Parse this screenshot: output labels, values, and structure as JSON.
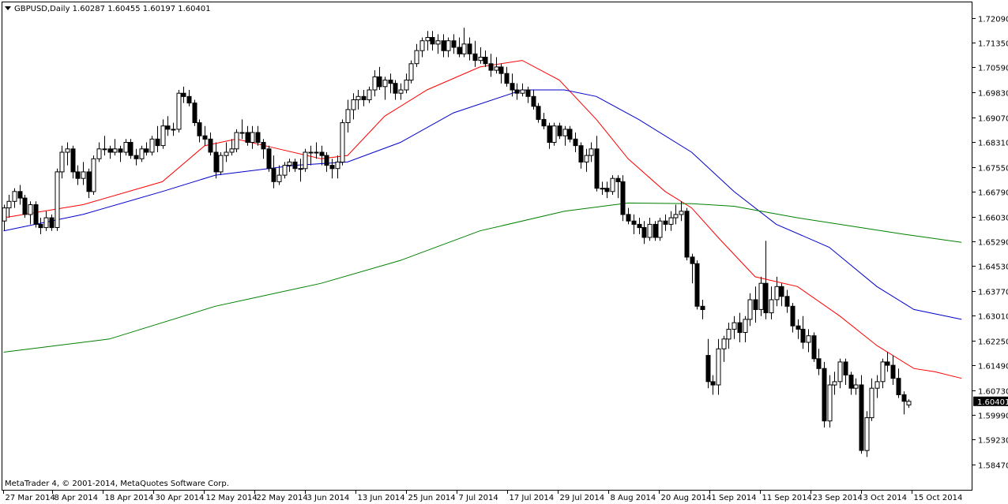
{
  "window": {
    "symbol_line": "GBPUSD,Daily  1.60287 1.60455 1.60197 1.60401",
    "copyright": "MetaTrader 4, © 2001-2014, MetaQuotes Software Corp.",
    "price_tag": "1.60401"
  },
  "colors": {
    "background": "#ffffff",
    "candle": "#000000",
    "ma_fast": "#ff0000",
    "ma_mid": "#0000cc",
    "ma_slow": "#008000"
  },
  "chart_data": {
    "type": "candlestick",
    "symbol": "GBPUSD",
    "timeframe": "Daily",
    "ylim": [
      1.5847,
      1.7209
    ],
    "y_ticks": [
      "1.72090",
      "1.71350",
      "1.70590",
      "1.69830",
      "1.69070",
      "1.68310",
      "1.67550",
      "1.66790",
      "1.66030",
      "1.65290",
      "1.64530",
      "1.63770",
      "1.63010",
      "1.62250",
      "1.61490",
      "1.60730",
      "1.59990",
      "1.59230",
      "1.58470"
    ],
    "x_labels": [
      "27 Mar 2014",
      "8 Apr 2014",
      "18 Apr 2014",
      "30 Apr 2014",
      "12 May 2014",
      "22 May 2014",
      "3 Jun 2014",
      "13 Jun 2014",
      "25 Jun 2014",
      "7 Jul 2014",
      "17 Jul 2014",
      "29 Jul 2014",
      "8 Aug 2014",
      "20 Aug 2014",
      "1 Sep 2014",
      "11 Sep 2014",
      "23 Sep 2014",
      "3 Oct 2014",
      "15 Oct 2014"
    ],
    "last_price": 1.60401,
    "ohlc": [
      [
        1.659,
        1.664,
        1.656,
        1.663
      ],
      [
        1.663,
        1.667,
        1.66,
        1.665
      ],
      [
        1.665,
        1.669,
        1.663,
        1.668
      ],
      [
        1.668,
        1.67,
        1.664,
        1.666
      ],
      [
        1.666,
        1.667,
        1.66,
        1.661
      ],
      [
        1.661,
        1.665,
        1.658,
        1.664
      ],
      [
        1.664,
        1.665,
        1.657,
        1.658
      ],
      [
        1.658,
        1.66,
        1.655,
        1.657
      ],
      [
        1.657,
        1.662,
        1.656,
        1.66
      ],
      [
        1.66,
        1.661,
        1.656,
        1.657
      ],
      [
        1.657,
        1.675,
        1.656,
        1.674
      ],
      [
        1.674,
        1.682,
        1.672,
        1.68
      ],
      [
        1.68,
        1.683,
        1.676,
        1.681
      ],
      [
        1.681,
        1.682,
        1.672,
        1.674
      ],
      [
        1.674,
        1.676,
        1.67,
        1.672
      ],
      [
        1.672,
        1.677,
        1.67,
        1.674
      ],
      [
        1.674,
        1.675,
        1.666,
        1.668
      ],
      [
        1.668,
        1.679,
        1.667,
        1.678
      ],
      [
        1.678,
        1.683,
        1.677,
        1.681
      ],
      [
        1.681,
        1.685,
        1.679,
        1.681
      ],
      [
        1.681,
        1.682,
        1.678,
        1.68
      ],
      [
        1.68,
        1.684,
        1.679,
        1.681
      ],
      [
        1.681,
        1.682,
        1.677,
        1.68
      ],
      [
        1.68,
        1.684,
        1.679,
        1.683
      ],
      [
        1.683,
        1.684,
        1.678,
        1.679
      ],
      [
        1.679,
        1.681,
        1.676,
        1.678
      ],
      [
        1.678,
        1.682,
        1.677,
        1.681
      ],
      [
        1.681,
        1.683,
        1.679,
        1.68
      ],
      [
        1.68,
        1.685,
        1.679,
        1.684
      ],
      [
        1.684,
        1.688,
        1.68,
        1.682
      ],
      [
        1.682,
        1.69,
        1.681,
        1.688
      ],
      [
        1.688,
        1.691,
        1.685,
        1.687
      ],
      [
        1.687,
        1.689,
        1.685,
        1.687
      ],
      [
        1.687,
        1.699,
        1.686,
        1.698
      ],
      [
        1.698,
        1.7,
        1.695,
        1.697
      ],
      [
        1.697,
        1.699,
        1.694,
        1.695
      ],
      [
        1.695,
        1.696,
        1.688,
        1.689
      ],
      [
        1.689,
        1.69,
        1.683,
        1.685
      ],
      [
        1.685,
        1.688,
        1.682,
        1.684
      ],
      [
        1.684,
        1.686,
        1.679,
        1.68
      ],
      [
        1.68,
        1.683,
        1.672,
        1.674
      ],
      [
        1.674,
        1.68,
        1.673,
        1.679
      ],
      [
        1.679,
        1.683,
        1.677,
        1.68
      ],
      [
        1.68,
        1.684,
        1.679,
        1.681
      ],
      [
        1.681,
        1.687,
        1.68,
        1.686
      ],
      [
        1.686,
        1.69,
        1.684,
        1.686
      ],
      [
        1.686,
        1.688,
        1.682,
        1.683
      ],
      [
        1.683,
        1.688,
        1.681,
        1.686
      ],
      [
        1.686,
        1.688,
        1.682,
        1.683
      ],
      [
        1.683,
        1.684,
        1.678,
        1.681
      ],
      [
        1.681,
        1.682,
        1.674,
        1.675
      ],
      [
        1.675,
        1.679,
        1.669,
        1.671
      ],
      [
        1.671,
        1.676,
        1.67,
        1.673
      ],
      [
        1.673,
        1.677,
        1.672,
        1.676
      ],
      [
        1.676,
        1.678,
        1.674,
        1.677
      ],
      [
        1.677,
        1.678,
        1.674,
        1.675
      ],
      [
        1.675,
        1.678,
        1.671,
        1.675
      ],
      [
        1.675,
        1.681,
        1.674,
        1.68
      ],
      [
        1.68,
        1.682,
        1.676,
        1.68
      ],
      [
        1.68,
        1.683,
        1.678,
        1.68
      ],
      [
        1.68,
        1.682,
        1.676,
        1.679
      ],
      [
        1.679,
        1.68,
        1.674,
        1.676
      ],
      [
        1.676,
        1.678,
        1.672,
        1.675
      ],
      [
        1.675,
        1.679,
        1.672,
        1.677
      ],
      [
        1.677,
        1.69,
        1.676,
        1.689
      ],
      [
        1.689,
        1.696,
        1.686,
        1.693
      ],
      [
        1.693,
        1.698,
        1.69,
        1.696
      ],
      [
        1.696,
        1.699,
        1.693,
        1.697
      ],
      [
        1.697,
        1.699,
        1.694,
        1.696
      ],
      [
        1.696,
        1.7,
        1.695,
        1.699
      ],
      [
        1.699,
        1.705,
        1.697,
        1.703
      ],
      [
        1.703,
        1.706,
        1.699,
        1.7
      ],
      [
        1.7,
        1.703,
        1.696,
        1.702
      ],
      [
        1.702,
        1.704,
        1.698,
        1.701
      ],
      [
        1.701,
        1.702,
        1.696,
        1.698
      ],
      [
        1.698,
        1.701,
        1.696,
        1.699
      ],
      [
        1.699,
        1.704,
        1.698,
        1.702
      ],
      [
        1.702,
        1.708,
        1.701,
        1.707
      ],
      [
        1.707,
        1.713,
        1.706,
        1.711
      ],
      [
        1.711,
        1.715,
        1.709,
        1.714
      ],
      [
        1.714,
        1.717,
        1.711,
        1.715
      ],
      [
        1.715,
        1.717,
        1.711,
        1.713
      ],
      [
        1.713,
        1.716,
        1.71,
        1.714
      ],
      [
        1.714,
        1.716,
        1.709,
        1.711
      ],
      [
        1.711,
        1.715,
        1.709,
        1.714
      ],
      [
        1.714,
        1.716,
        1.71,
        1.712
      ],
      [
        1.712,
        1.715,
        1.709,
        1.71
      ],
      [
        1.71,
        1.718,
        1.709,
        1.713
      ],
      [
        1.713,
        1.715,
        1.708,
        1.71
      ],
      [
        1.71,
        1.714,
        1.706,
        1.708
      ],
      [
        1.708,
        1.712,
        1.707,
        1.709
      ],
      [
        1.709,
        1.711,
        1.706,
        1.707
      ],
      [
        1.707,
        1.71,
        1.703,
        1.705
      ],
      [
        1.705,
        1.709,
        1.704,
        1.706
      ],
      [
        1.706,
        1.707,
        1.701,
        1.704
      ],
      [
        1.704,
        1.706,
        1.7,
        1.701
      ],
      [
        1.701,
        1.704,
        1.697,
        1.699
      ],
      [
        1.699,
        1.701,
        1.696,
        1.698
      ],
      [
        1.698,
        1.701,
        1.697,
        1.699
      ],
      [
        1.699,
        1.7,
        1.695,
        1.697
      ],
      [
        1.697,
        1.699,
        1.693,
        1.694
      ],
      [
        1.694,
        1.695,
        1.689,
        1.69
      ],
      [
        1.69,
        1.692,
        1.687,
        1.688
      ],
      [
        1.688,
        1.689,
        1.681,
        1.683
      ],
      [
        1.683,
        1.689,
        1.682,
        1.688
      ],
      [
        1.688,
        1.689,
        1.684,
        1.685
      ],
      [
        1.685,
        1.688,
        1.682,
        1.687
      ],
      [
        1.687,
        1.688,
        1.683,
        1.684
      ],
      [
        1.684,
        1.686,
        1.68,
        1.682
      ],
      [
        1.682,
        1.683,
        1.675,
        1.677
      ],
      [
        1.677,
        1.681,
        1.674,
        1.679
      ],
      [
        1.679,
        1.683,
        1.677,
        1.681
      ],
      [
        1.681,
        1.685,
        1.668,
        1.669
      ],
      [
        1.669,
        1.671,
        1.667,
        1.669
      ],
      [
        1.669,
        1.671,
        1.666,
        1.668
      ],
      [
        1.668,
        1.673,
        1.667,
        1.672
      ],
      [
        1.672,
        1.673,
        1.666,
        1.671
      ],
      [
        1.671,
        1.673,
        1.659,
        1.661
      ],
      [
        1.661,
        1.663,
        1.658,
        1.659
      ],
      [
        1.659,
        1.661,
        1.655,
        1.658
      ],
      [
        1.658,
        1.66,
        1.655,
        1.657
      ],
      [
        1.657,
        1.659,
        1.652,
        1.654
      ],
      [
        1.654,
        1.66,
        1.653,
        1.658
      ],
      [
        1.658,
        1.659,
        1.653,
        1.654
      ],
      [
        1.654,
        1.66,
        1.653,
        1.659
      ],
      [
        1.659,
        1.661,
        1.656,
        1.658
      ],
      [
        1.658,
        1.662,
        1.656,
        1.66
      ],
      [
        1.66,
        1.664,
        1.658,
        1.661
      ],
      [
        1.661,
        1.665,
        1.659,
        1.662
      ],
      [
        1.662,
        1.663,
        1.647,
        1.648
      ],
      [
        1.648,
        1.649,
        1.64,
        1.646
      ],
      [
        1.646,
        1.647,
        1.632,
        1.633
      ],
      [
        1.633,
        1.635,
        1.629,
        1.632
      ],
      [
        1.618,
        1.623,
        1.608,
        1.61
      ],
      [
        1.61,
        1.612,
        1.606,
        1.609
      ],
      [
        1.609,
        1.623,
        1.606,
        1.62
      ],
      [
        1.62,
        1.624,
        1.616,
        1.623
      ],
      [
        1.623,
        1.628,
        1.62,
        1.626
      ],
      [
        1.626,
        1.63,
        1.623,
        1.628
      ],
      [
        1.628,
        1.631,
        1.622,
        1.625
      ],
      [
        1.625,
        1.63,
        1.622,
        1.629
      ],
      [
        1.629,
        1.637,
        1.627,
        1.635
      ],
      [
        1.635,
        1.639,
        1.628,
        1.632
      ],
      [
        1.632,
        1.642,
        1.63,
        1.64
      ],
      [
        1.64,
        1.653,
        1.629,
        1.631
      ],
      [
        1.631,
        1.639,
        1.629,
        1.635
      ],
      [
        1.635,
        1.642,
        1.633,
        1.639
      ],
      [
        1.639,
        1.64,
        1.633,
        1.636
      ],
      [
        1.636,
        1.638,
        1.631,
        1.633
      ],
      [
        1.633,
        1.634,
        1.625,
        1.627
      ],
      [
        1.627,
        1.629,
        1.623,
        1.626
      ],
      [
        1.626,
        1.63,
        1.62,
        1.622
      ],
      [
        1.622,
        1.626,
        1.619,
        1.624
      ],
      [
        1.624,
        1.625,
        1.616,
        1.617
      ],
      [
        1.617,
        1.62,
        1.612,
        1.614
      ],
      [
        1.614,
        1.616,
        1.596,
        1.598
      ],
      [
        1.598,
        1.612,
        1.596,
        1.609
      ],
      [
        1.609,
        1.613,
        1.606,
        1.61
      ],
      [
        1.61,
        1.617,
        1.608,
        1.616
      ],
      [
        1.616,
        1.617,
        1.609,
        1.612
      ],
      [
        1.612,
        1.613,
        1.606,
        1.608
      ],
      [
        1.608,
        1.611,
        1.606,
        1.609
      ],
      [
        1.609,
        1.612,
        1.588,
        1.589
      ],
      [
        1.589,
        1.601,
        1.587,
        1.599
      ],
      [
        1.599,
        1.611,
        1.598,
        1.608
      ],
      [
        1.608,
        1.612,
        1.605,
        1.61
      ],
      [
        1.61,
        1.617,
        1.608,
        1.616
      ],
      [
        1.616,
        1.619,
        1.613,
        1.615
      ],
      [
        1.615,
        1.618,
        1.609,
        1.611
      ],
      [
        1.611,
        1.614,
        1.605,
        1.606
      ],
      [
        1.606,
        1.607,
        1.6,
        1.604
      ],
      [
        1.6029,
        1.6046,
        1.602,
        1.604
      ]
    ],
    "moving_averages": [
      {
        "color": "#ff0000",
        "points": [
          [
            0,
            1.66
          ],
          [
            15,
            1.664
          ],
          [
            30,
            1.671
          ],
          [
            38,
            1.682
          ],
          [
            44,
            1.684
          ],
          [
            52,
            1.681
          ],
          [
            60,
            1.678
          ],
          [
            65,
            1.679
          ],
          [
            72,
            1.691
          ],
          [
            80,
            1.699
          ],
          [
            90,
            1.706
          ],
          [
            98,
            1.708
          ],
          [
            105,
            1.702
          ],
          [
            112,
            1.69
          ],
          [
            118,
            1.678
          ],
          [
            125,
            1.668
          ],
          [
            130,
            1.663
          ],
          [
            135,
            1.654
          ],
          [
            142,
            1.642
          ],
          [
            150,
            1.639
          ],
          [
            158,
            1.63
          ],
          [
            165,
            1.621
          ],
          [
            172,
            1.614
          ],
          [
            176,
            1.613
          ],
          [
            181,
            1.611
          ]
        ]
      },
      {
        "color": "#0000cc",
        "points": [
          [
            0,
            1.656
          ],
          [
            15,
            1.661
          ],
          [
            30,
            1.668
          ],
          [
            40,
            1.673
          ],
          [
            55,
            1.676
          ],
          [
            65,
            1.677
          ],
          [
            75,
            1.683
          ],
          [
            85,
            1.692
          ],
          [
            98,
            1.699
          ],
          [
            106,
            1.699
          ],
          [
            112,
            1.697
          ],
          [
            120,
            1.69
          ],
          [
            130,
            1.68
          ],
          [
            138,
            1.668
          ],
          [
            146,
            1.658
          ],
          [
            156,
            1.651
          ],
          [
            165,
            1.639
          ],
          [
            172,
            1.632
          ],
          [
            181,
            1.629
          ]
        ]
      },
      {
        "color": "#008000",
        "points": [
          [
            0,
            1.619
          ],
          [
            20,
            1.623
          ],
          [
            40,
            1.633
          ],
          [
            60,
            1.64
          ],
          [
            75,
            1.647
          ],
          [
            90,
            1.656
          ],
          [
            106,
            1.662
          ],
          [
            118,
            1.6645
          ],
          [
            130,
            1.6643
          ],
          [
            138,
            1.6635
          ],
          [
            150,
            1.66
          ],
          [
            160,
            1.6575
          ],
          [
            170,
            1.655
          ],
          [
            181,
            1.6525
          ]
        ]
      }
    ]
  }
}
